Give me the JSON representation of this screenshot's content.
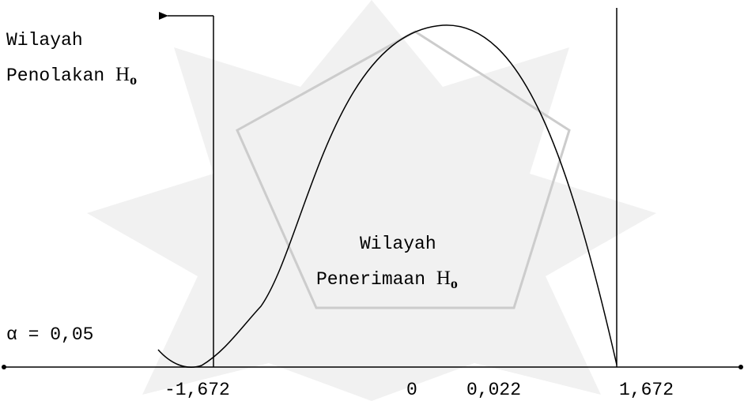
{
  "rejection_label": {
    "line1": "Wilayah",
    "line2": "Penolakan",
    "symbol": "H",
    "subscript": "o"
  },
  "acceptance_label": {
    "line1": "Wilayah",
    "line2": "Penerimaan",
    "symbol": "H",
    "subscript": "o"
  },
  "alpha_label": "α = 0,05",
  "axis_labels": [
    "-1,672",
    "0",
    "0,022",
    "1,672"
  ]
}
